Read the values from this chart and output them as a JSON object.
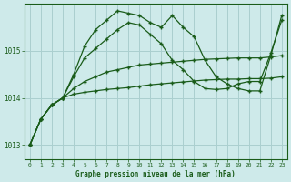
{
  "title": "Graphe pression niveau de la mer (hPa)",
  "bg_color": "#ceeaea",
  "grid_color": "#aacfcf",
  "line_color": "#1a5c1a",
  "marker": "+",
  "xlim": [
    -0.5,
    23.5
  ],
  "ylim": [
    1012.7,
    1016.0
  ],
  "yticks": [
    1013,
    1014,
    1015
  ],
  "xticks": [
    0,
    1,
    2,
    3,
    4,
    5,
    6,
    7,
    8,
    9,
    10,
    11,
    12,
    13,
    14,
    15,
    16,
    17,
    18,
    19,
    20,
    21,
    22,
    23
  ],
  "series": [
    [
      1013.0,
      1013.55,
      1013.85,
      1014.0,
      1014.2,
      1014.35,
      1014.45,
      1014.55,
      1014.6,
      1014.65,
      1014.7,
      1014.72,
      1014.74,
      1014.76,
      1014.78,
      1014.8,
      1014.82,
      1014.83,
      1014.84,
      1014.85,
      1014.85,
      1014.85,
      1014.87,
      1014.9
    ],
    [
      1013.0,
      1013.55,
      1013.85,
      1014.0,
      1014.08,
      1014.12,
      1014.15,
      1014.18,
      1014.2,
      1014.22,
      1014.25,
      1014.28,
      1014.3,
      1014.32,
      1014.34,
      1014.36,
      1014.38,
      1014.39,
      1014.4,
      1014.4,
      1014.41,
      1014.41,
      1014.42,
      1014.45
    ],
    [
      1013.0,
      1013.55,
      1013.85,
      1014.0,
      1014.45,
      1014.85,
      1015.05,
      1015.25,
      1015.45,
      1015.6,
      1015.55,
      1015.35,
      1015.15,
      1014.8,
      1014.6,
      1014.35,
      1014.2,
      1014.18,
      1014.2,
      1014.3,
      1014.35,
      1014.35,
      1014.95,
      1015.65
    ],
    [
      1013.0,
      1013.55,
      1013.85,
      1014.0,
      1014.5,
      1015.1,
      1015.45,
      1015.65,
      1015.85,
      1015.8,
      1015.75,
      1015.6,
      1015.5,
      1015.75,
      1015.5,
      1015.3,
      1014.8,
      1014.45,
      1014.3,
      1014.2,
      1014.15,
      1014.15,
      1014.9,
      1015.75
    ]
  ]
}
